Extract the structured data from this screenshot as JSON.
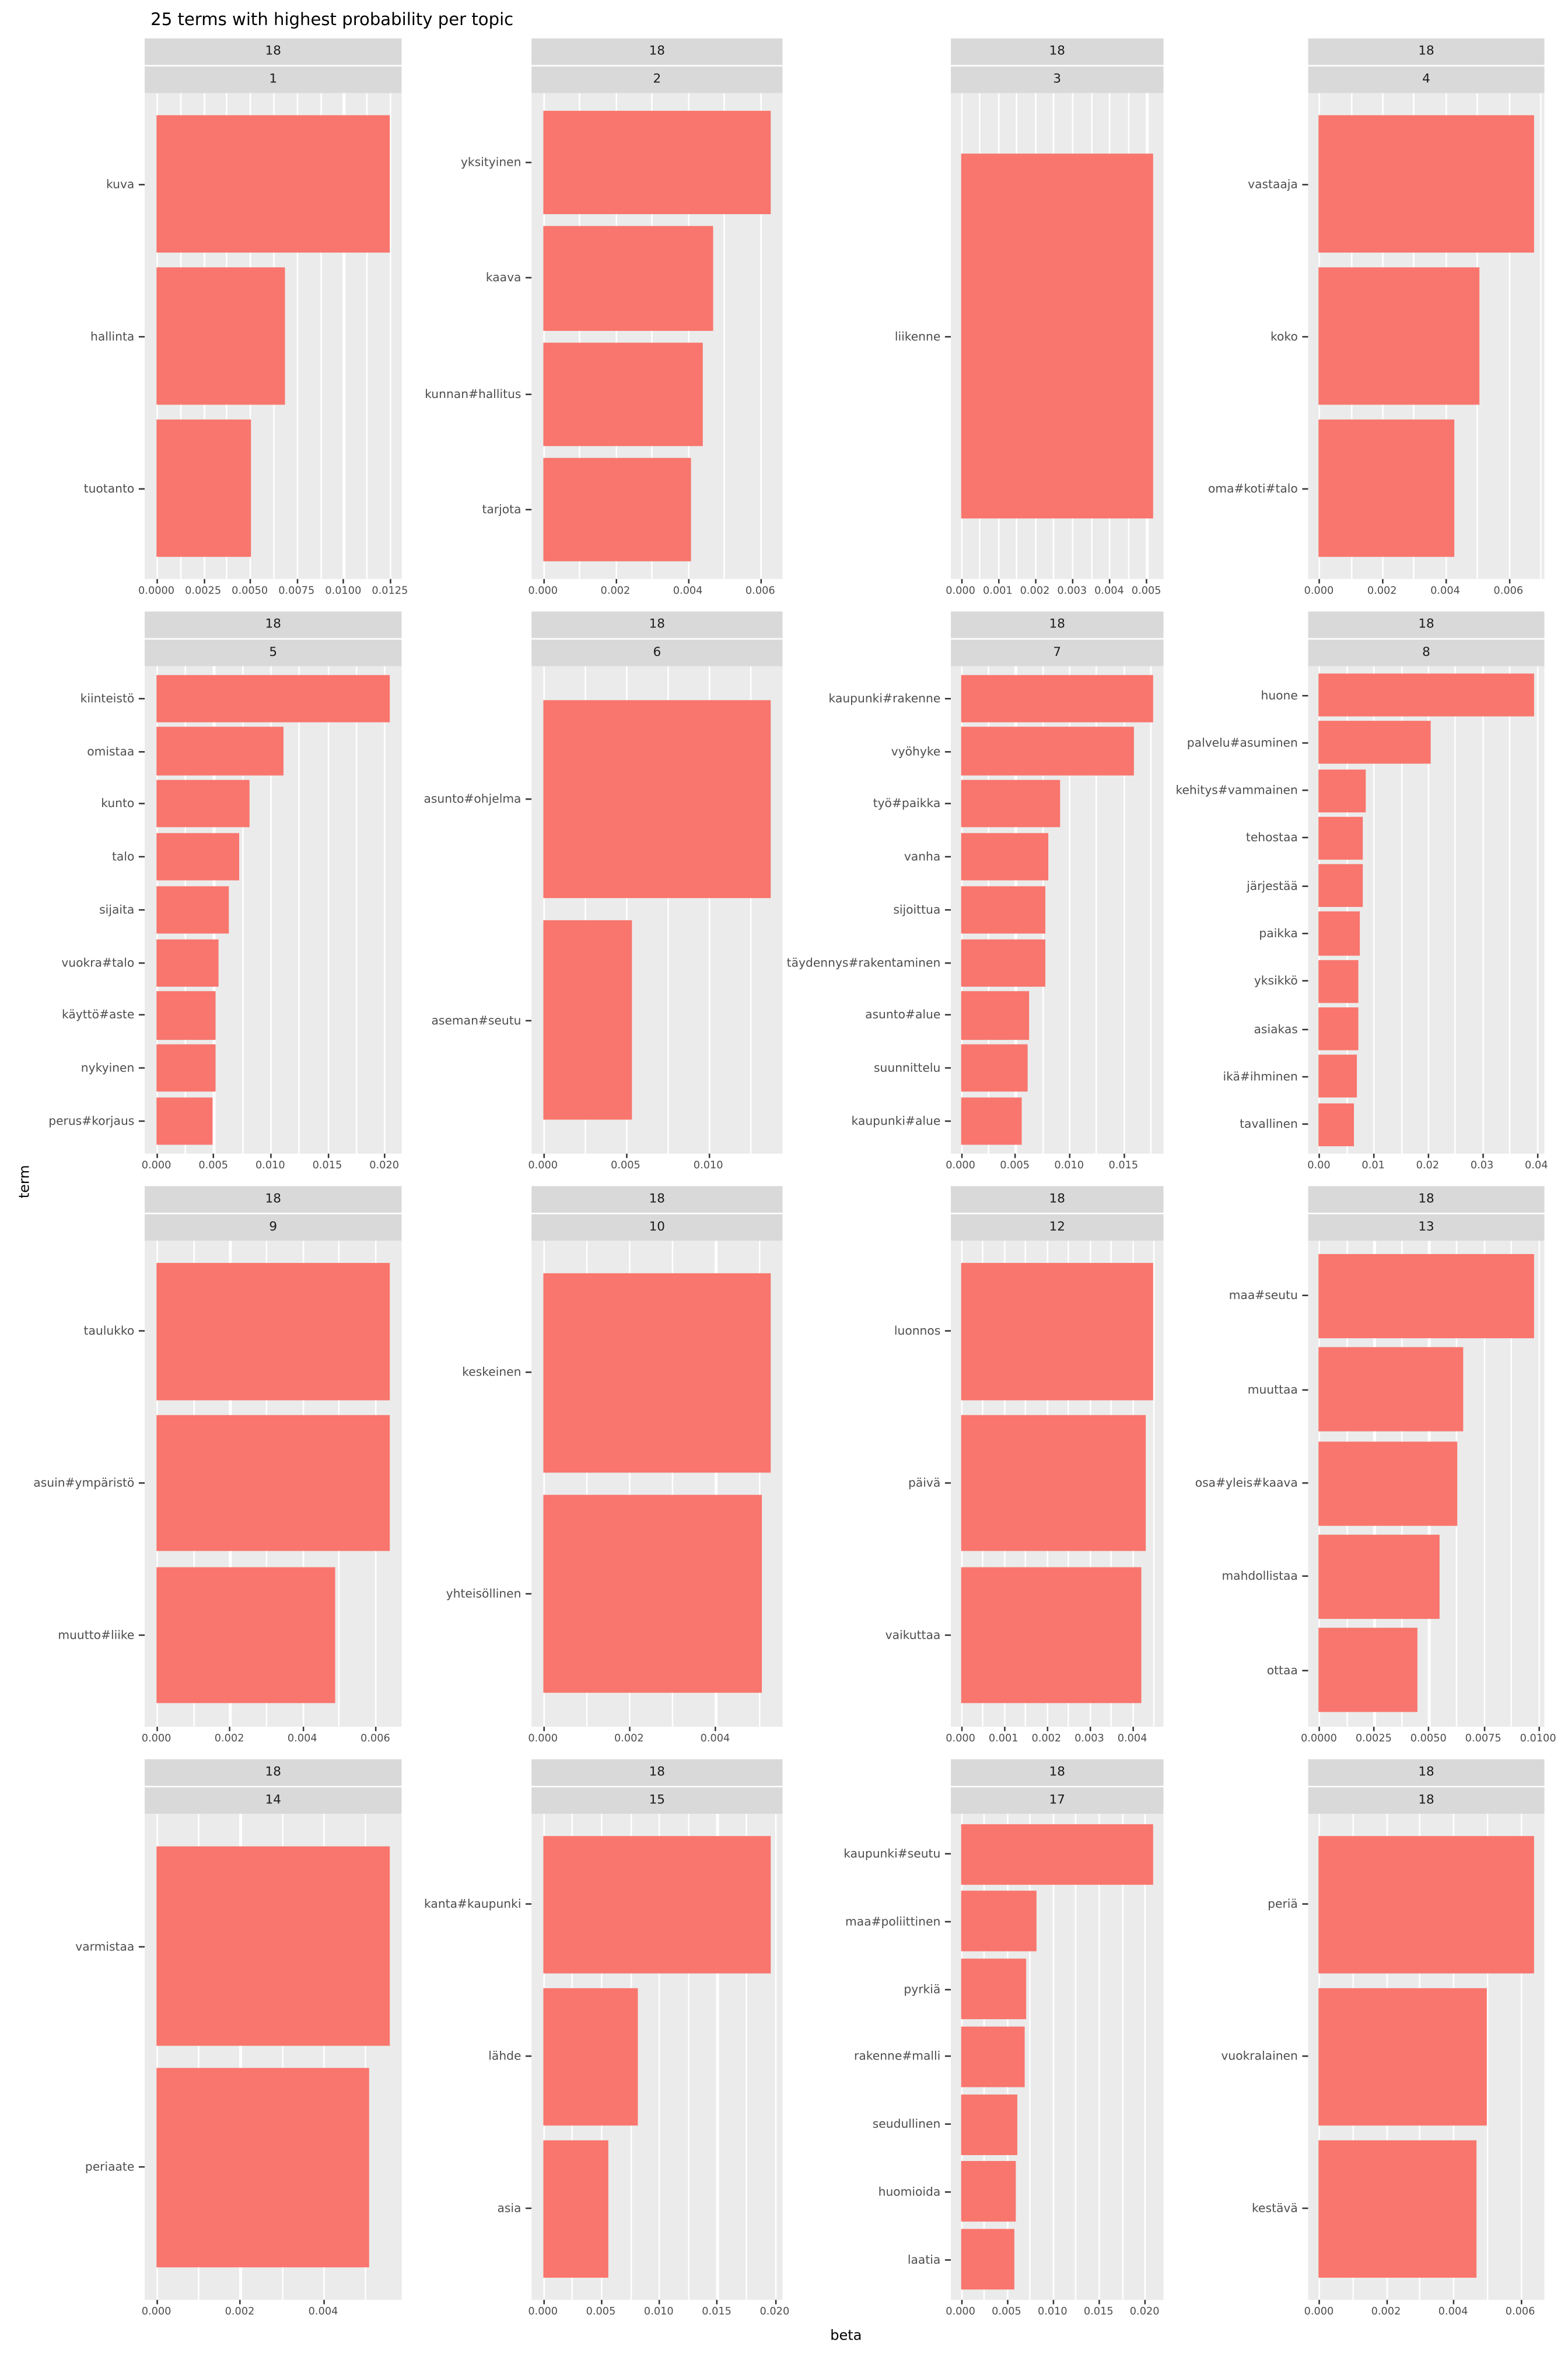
{
  "title": "25 terms with highest probability per topic",
  "xlabel": "beta",
  "ylabel": "term",
  "colors": {
    "bar": "#F8766D",
    "panel_bg": "#EBEBEB",
    "strip_bg": "#D9D9D9",
    "grid": "#FFFFFF",
    "tick_text": "#4D4D4D",
    "strip_text": "#1A1A1A"
  },
  "chart_data": {
    "type": "bar",
    "orientation": "horizontal",
    "title": "25 terms with highest probability per topic",
    "xlabel": "beta",
    "ylabel": "term",
    "grid": "on",
    "facets": [
      {
        "strip_top": "18",
        "strip_bottom": "1",
        "terms": [
          "kuva",
          "hallinta",
          "tuotanto"
        ],
        "values": [
          0.0125,
          0.0069,
          0.0051
        ],
        "ticks": [
          0,
          0.0025,
          0.005,
          0.0075,
          0.01,
          0.0125
        ],
        "tick_labels": [
          "0.0000",
          "0.0025",
          "0.0050",
          "0.0075",
          "0.0100",
          "0.0125"
        ]
      },
      {
        "strip_top": "18",
        "strip_bottom": "2",
        "terms": [
          "yksityinen",
          "kaava",
          "kunnan#hallitus",
          "tarjota"
        ],
        "values": [
          0.0063,
          0.0047,
          0.0044,
          0.0041
        ],
        "ticks": [
          0,
          0.002,
          0.004,
          0.006
        ],
        "tick_labels": [
          "0.000",
          "0.002",
          "0.004",
          "0.006"
        ]
      },
      {
        "strip_top": "18",
        "strip_bottom": "3",
        "terms": [
          "liikenne"
        ],
        "values": [
          0.0052
        ],
        "ticks": [
          0,
          0.001,
          0.002,
          0.003,
          0.004,
          0.005
        ],
        "tick_labels": [
          "0.000",
          "0.001",
          "0.002",
          "0.003",
          "0.004",
          "0.005"
        ]
      },
      {
        "strip_top": "18",
        "strip_bottom": "4",
        "terms": [
          "vastaaja",
          "koko",
          "oma#koti#talo"
        ],
        "values": [
          0.0068,
          0.0051,
          0.0043
        ],
        "ticks": [
          0,
          0.002,
          0.004,
          0.006
        ],
        "tick_labels": [
          "0.000",
          "0.002",
          "0.004",
          "0.006"
        ]
      },
      {
        "strip_top": "18",
        "strip_bottom": "5",
        "terms": [
          "kiinteistö",
          "omistaa",
          "kunto",
          "talo",
          "sijaita",
          "vuokra#talo",
          "käyttö#aste",
          "nykyinen",
          "perus#korjaus"
        ],
        "values": [
          0.0205,
          0.0112,
          0.0082,
          0.0073,
          0.0063,
          0.0055,
          0.0052,
          0.0052,
          0.005
        ],
        "ticks": [
          0,
          0.005,
          0.01,
          0.015,
          0.02
        ],
        "tick_labels": [
          "0.000",
          "0.005",
          "0.010",
          "0.015",
          "0.020"
        ]
      },
      {
        "strip_top": "18",
        "strip_bottom": "6",
        "terms": [
          "asunto#ohjelma",
          "aseman#seutu"
        ],
        "values": [
          0.0138,
          0.0054
        ],
        "ticks": [
          0,
          0.005,
          0.01
        ],
        "tick_labels": [
          "0.000",
          "0.005",
          "0.010"
        ]
      },
      {
        "strip_top": "18",
        "strip_bottom": "7",
        "terms": [
          "kaupunki#rakenne",
          "vyöhyke",
          "työ#paikka",
          "vanha",
          "sijoittua",
          "täydennys#rakentaminen",
          "asunto#alue",
          "suunnittelu",
          "kaupunki#alue"
        ],
        "values": [
          0.0178,
          0.016,
          0.0092,
          0.0081,
          0.0078,
          0.0078,
          0.0063,
          0.0062,
          0.0057
        ],
        "ticks": [
          0,
          0.005,
          0.01,
          0.015
        ],
        "tick_labels": [
          "0.000",
          "0.005",
          "0.010",
          "0.015"
        ]
      },
      {
        "strip_top": "18",
        "strip_bottom": "8",
        "terms": [
          "huone",
          "palvelu#asuminen",
          "kehitys#vammainen",
          "tehostaa",
          "järjestää",
          "paikka",
          "yksikkö",
          "asiakas",
          "ikä#ihminen",
          "tavallinen"
        ],
        "values": [
          0.0395,
          0.0205,
          0.0085,
          0.0082,
          0.008,
          0.0075,
          0.0073,
          0.0072,
          0.007,
          0.0065
        ],
        "ticks": [
          0,
          0.01,
          0.02,
          0.03,
          0.04
        ],
        "tick_labels": [
          "0.00",
          "0.01",
          "0.02",
          "0.03",
          "0.04"
        ]
      },
      {
        "strip_top": "18",
        "strip_bottom": "9",
        "terms": [
          "taulukko",
          "asuin#ympäristö",
          "muutto#liike"
        ],
        "values": [
          0.0064,
          0.0064,
          0.0049
        ],
        "ticks": [
          0,
          0.002,
          0.004,
          0.006
        ],
        "tick_labels": [
          "0.000",
          "0.002",
          "0.004",
          "0.006"
        ]
      },
      {
        "strip_top": "18",
        "strip_bottom": "10",
        "terms": [
          "keskeinen",
          "yhteisöllinen"
        ],
        "values": [
          0.0053,
          0.0051
        ],
        "ticks": [
          0,
          0.002,
          0.004
        ],
        "tick_labels": [
          "0.000",
          "0.002",
          "0.004"
        ]
      },
      {
        "strip_top": "18",
        "strip_bottom": "12",
        "terms": [
          "luonnos",
          "päivä",
          "vaikuttaa"
        ],
        "values": [
          0.0045,
          0.0043,
          0.0042
        ],
        "ticks": [
          0,
          0.001,
          0.002,
          0.003,
          0.004
        ],
        "tick_labels": [
          "0.000",
          "0.001",
          "0.002",
          "0.003",
          "0.004"
        ]
      },
      {
        "strip_top": "18",
        "strip_bottom": "13",
        "terms": [
          "maa#seutu",
          "muuttaa",
          "osa#yleis#kaava",
          "mahdollistaa",
          "ottaa"
        ],
        "values": [
          0.0098,
          0.0066,
          0.0063,
          0.0055,
          0.0045
        ],
        "ticks": [
          0,
          0.0025,
          0.005,
          0.0075,
          0.01
        ],
        "tick_labels": [
          "0.0000",
          "0.0025",
          "0.0050",
          "0.0075",
          "0.0100"
        ]
      },
      {
        "strip_top": "18",
        "strip_bottom": "14",
        "terms": [
          "varmistaa",
          "periaate"
        ],
        "values": [
          0.0056,
          0.0051
        ],
        "ticks": [
          0,
          0.002,
          0.004
        ],
        "tick_labels": [
          "0.000",
          "0.002",
          "0.004"
        ]
      },
      {
        "strip_top": "18",
        "strip_bottom": "15",
        "terms": [
          "kanta#kaupunki",
          "lähde",
          "asia"
        ],
        "values": [
          0.0197,
          0.0082,
          0.0056
        ],
        "ticks": [
          0,
          0.005,
          0.01,
          0.015,
          0.02
        ],
        "tick_labels": [
          "0.000",
          "0.005",
          "0.010",
          "0.015",
          "0.020"
        ]
      },
      {
        "strip_top": "18",
        "strip_bottom": "17",
        "terms": [
          "kaupunki#seutu",
          "maa#poliittinen",
          "pyrkiä",
          "rakenne#malli",
          "seudullinen",
          "huomioida",
          "laatia"
        ],
        "values": [
          0.021,
          0.0082,
          0.0071,
          0.007,
          0.0062,
          0.006,
          0.0058
        ],
        "ticks": [
          0,
          0.005,
          0.01,
          0.015,
          0.02
        ],
        "tick_labels": [
          "0.000",
          "0.005",
          "0.010",
          "0.015",
          "0.020"
        ]
      },
      {
        "strip_top": "18",
        "strip_bottom": "18",
        "terms": [
          "periä",
          "vuokralainen",
          "kestävä"
        ],
        "values": [
          0.0064,
          0.005,
          0.0047
        ],
        "ticks": [
          0,
          0.002,
          0.004,
          0.006
        ],
        "tick_labels": [
          "0.000",
          "0.002",
          "0.004",
          "0.006"
        ]
      }
    ]
  }
}
